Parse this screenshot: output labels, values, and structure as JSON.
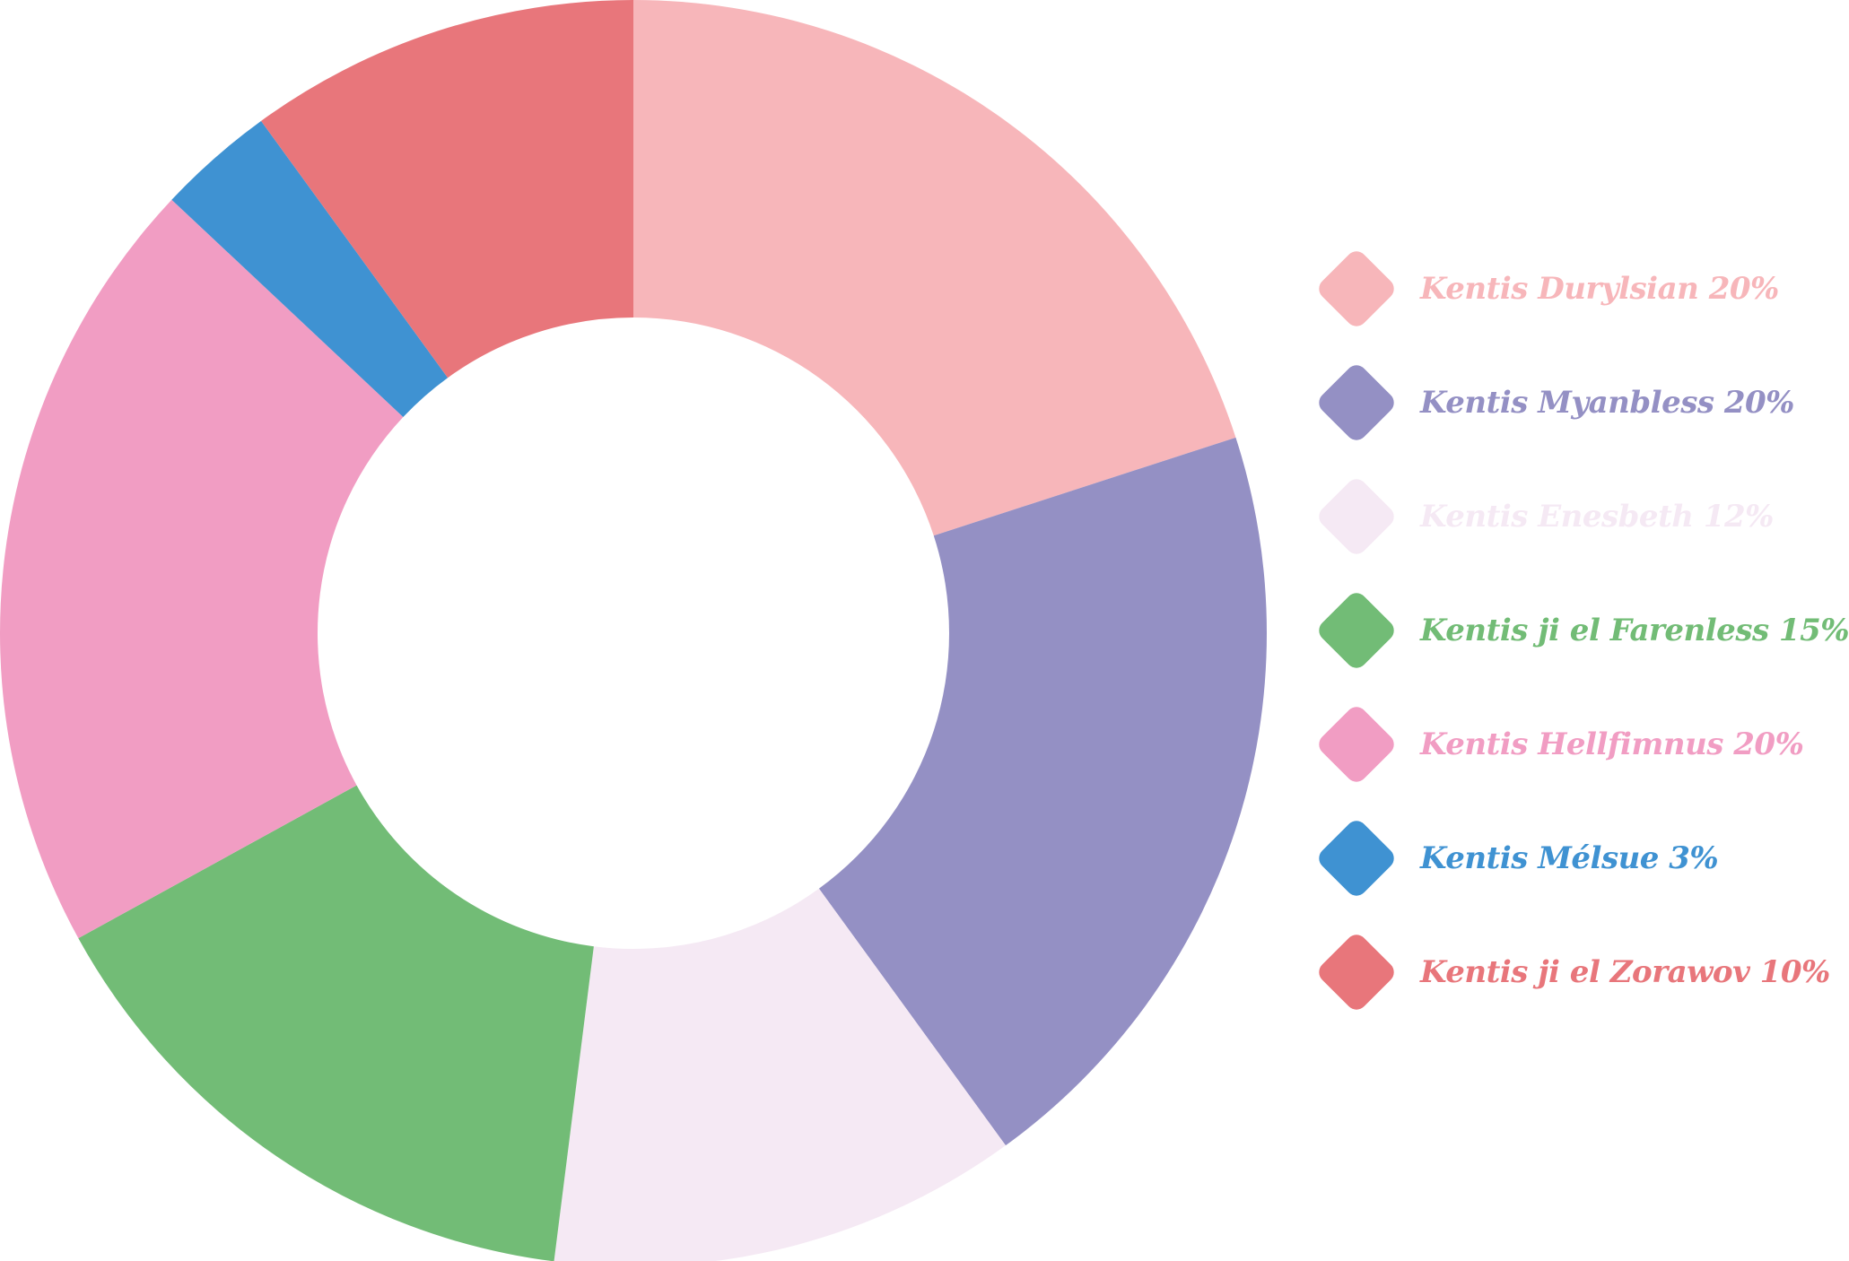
{
  "chart_data": {
    "type": "pie",
    "donut": true,
    "legend_position": "right",
    "slices": [
      {
        "label": "Kentis Durylsian",
        "value": 20,
        "display": "Kentis Durylsian 20%",
        "color": "#F7B6BA"
      },
      {
        "label": "Kentis Myanbless",
        "value": 20,
        "display": "Kentis Myanbless 20%",
        "color": "#9490C4"
      },
      {
        "label": "Kentis Enesbeth",
        "value": 12,
        "display": "Kentis Enesbeth 12%",
        "color": "#F5E9F4"
      },
      {
        "label": "Kentis ji el Farenless",
        "value": 15,
        "display": "Kentis ji el Farenless 15%",
        "color": "#72BC76"
      },
      {
        "label": "Kentis Hellfimnus",
        "value": 20,
        "display": "Kentis Hellfimnus 20%",
        "color": "#F19DC3"
      },
      {
        "label": "Kentis Mélsue",
        "value": 3,
        "display": "Kentis Mélsue 3%",
        "color": "#3F92D2"
      },
      {
        "label": "Kentis ji el Zorawov",
        "value": 10,
        "display": "Kentis ji el Zorawov 10%",
        "color": "#E8767B"
      }
    ]
  }
}
